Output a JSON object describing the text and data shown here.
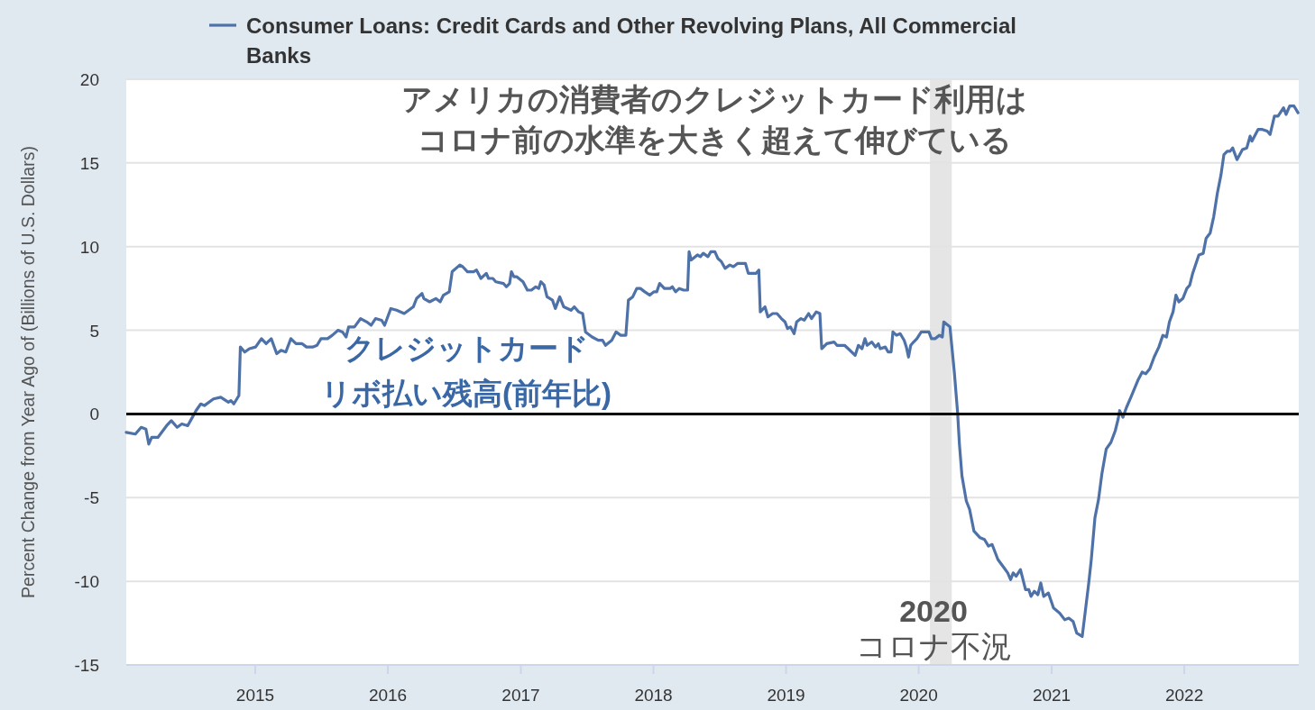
{
  "chart_data": {
    "type": "line",
    "ylabel": "Percent Change from Year Ago of (Billions of U.S. Dollars)",
    "legend": "top",
    "grid": "y",
    "line_style": "solid",
    "xlim": [
      "2014-01-11",
      "2022-11-12"
    ],
    "xticks": [
      {
        "value": "2015-01-01",
        "label": "2015"
      },
      {
        "value": "2016-01-01",
        "label": "2016"
      },
      {
        "value": "2017-01-01",
        "label": "2017"
      },
      {
        "value": "2018-01-01",
        "label": "2018"
      },
      {
        "value": "2019-01-01",
        "label": "2019"
      },
      {
        "value": "2020-01-01",
        "label": "2020"
      },
      {
        "value": "2021-01-01",
        "label": "2021"
      },
      {
        "value": "2022-01-01",
        "label": "2022"
      }
    ],
    "ylim": [
      -15,
      20
    ],
    "yticks": [
      -15,
      -10,
      -5,
      0,
      5,
      10,
      15,
      20
    ],
    "ref_lines": [
      {
        "axis": "y",
        "value": 0,
        "color": "#000000"
      }
    ],
    "bands": [
      {
        "axis": "x",
        "from": "2020-02-01",
        "to": "2020-04-01",
        "color": "#e5e5e5"
      }
    ],
    "annotations": [
      "アメリカの消費者のクレジットカード利用はコロナ前の水準を大きく超えて伸びている",
      "クレジットカードリボ払い残高(前年比)",
      "2020\nコロナ不況"
    ],
    "series": [
      {
        "name": "Consumer Loans: Credit Cards and Other Revolving Plans, All Commercial Banks",
        "color": "#4e72a8",
        "x": [
          "2014-01-11",
          "2014-02-05",
          "2014-02-21",
          "2014-03-06",
          "2014-03-14",
          "2014-03-22",
          "2014-04-08",
          "2014-05-02",
          "2014-05-15",
          "2014-05-31",
          "2014-06-13",
          "2014-06-29",
          "2014-07-12",
          "2014-07-22",
          "2014-08-04",
          "2014-08-14",
          "2014-09-08",
          "2014-09-28",
          "2014-10-19",
          "2014-10-26",
          "2014-11-03",
          "2014-11-17",
          "2014-11-21",
          "2014-12-03",
          "2014-12-16",
          "2015-01-02",
          "2015-01-18",
          "2015-01-31",
          "2015-02-14",
          "2015-03-01",
          "2015-03-13",
          "2015-03-26",
          "2015-04-09",
          "2015-04-23",
          "2015-05-10",
          "2015-05-22",
          "2015-06-08",
          "2015-06-20",
          "2015-07-01",
          "2015-07-19",
          "2015-08-01",
          "2015-08-17",
          "2015-08-29",
          "2015-09-08",
          "2015-09-15",
          "2015-10-01",
          "2015-10-18",
          "2015-11-04",
          "2015-11-16",
          "2015-11-28",
          "2015-12-15",
          "2015-12-23",
          "2016-01-09",
          "2016-01-25",
          "2016-02-15",
          "2016-03-11",
          "2016-03-20",
          "2016-04-04",
          "2016-04-09",
          "2016-04-25",
          "2016-05-12",
          "2016-05-24",
          "2016-06-02",
          "2016-06-18",
          "2016-06-26",
          "2016-07-17",
          "2016-07-25",
          "2016-08-07",
          "2016-08-24",
          "2016-09-01",
          "2016-09-13",
          "2016-09-28",
          "2016-10-04",
          "2016-10-16",
          "2016-10-24",
          "2016-11-14",
          "2016-11-22",
          "2016-12-01",
          "2016-12-06",
          "2016-12-13",
          "2016-12-21",
          "2017-01-07",
          "2017-01-19",
          "2017-01-30",
          "2017-02-11",
          "2017-02-19",
          "2017-02-25",
          "2017-03-06",
          "2017-03-14",
          "2017-03-29",
          "2017-04-06",
          "2017-04-18",
          "2017-04-29",
          "2017-05-19",
          "2017-05-28",
          "2017-06-09",
          "2017-06-20",
          "2017-06-28",
          "2017-07-16",
          "2017-08-02",
          "2017-08-14",
          "2017-08-22",
          "2017-09-08",
          "2017-09-20",
          "2017-10-03",
          "2017-10-17",
          "2017-10-24",
          "2017-11-05",
          "2017-11-16",
          "2017-11-26",
          "2017-12-08",
          "2017-12-22",
          "2018-01-02",
          "2018-01-10",
          "2018-01-18",
          "2018-01-31",
          "2018-02-16",
          "2018-02-22",
          "2018-03-03",
          "2018-03-13",
          "2018-03-25",
          "2018-04-05",
          "2018-04-09",
          "2018-04-15",
          "2018-05-02",
          "2018-05-10",
          "2018-05-18",
          "2018-05-31",
          "2018-06-08",
          "2018-06-19",
          "2018-06-27",
          "2018-07-07",
          "2018-07-17",
          "2018-07-30",
          "2018-08-09",
          "2018-08-21",
          "2018-09-11",
          "2018-09-19",
          "2018-10-10",
          "2018-10-18",
          "2018-10-22",
          "2018-11-04",
          "2018-11-12",
          "2018-11-25",
          "2018-12-07",
          "2018-12-19",
          "2018-12-29",
          "2019-01-05",
          "2019-01-13",
          "2019-01-23",
          "2019-01-30",
          "2019-02-11",
          "2019-02-20",
          "2019-03-04",
          "2019-03-12",
          "2019-03-25",
          "2019-04-04",
          "2019-04-09",
          "2019-04-23",
          "2019-05-13",
          "2019-05-21",
          "2019-06-11",
          "2019-06-21",
          "2019-07-10",
          "2019-07-19",
          "2019-07-29",
          "2019-08-06",
          "2019-08-12",
          "2019-08-25",
          "2019-09-04",
          "2019-09-12",
          "2019-09-17",
          "2019-10-01",
          "2019-10-09",
          "2019-10-17",
          "2019-10-22",
          "2019-11-01",
          "2019-11-11",
          "2019-11-22",
          "2019-11-28",
          "2019-12-04",
          "2019-12-10",
          "2019-12-18",
          "2019-12-27",
          "2020-01-08",
          "2020-01-29",
          "2020-02-05",
          "2020-02-15",
          "2020-02-27",
          "2020-03-06",
          "2020-03-10",
          "2020-03-27",
          "2020-04-08",
          "2020-04-17",
          "2020-04-22",
          "2020-04-29",
          "2020-05-11",
          "2020-05-20",
          "2020-06-01",
          "2020-06-18",
          "2020-06-30",
          "2020-07-11",
          "2020-07-21",
          "2020-08-06",
          "2020-08-23",
          "2020-09-02",
          "2020-09-10",
          "2020-09-17",
          "2020-09-25",
          "2020-10-07",
          "2020-10-21",
          "2020-10-30",
          "2020-11-05",
          "2020-11-14",
          "2020-11-24",
          "2020-12-02",
          "2020-12-10",
          "2020-12-23",
          "2021-01-06",
          "2021-01-23",
          "2021-02-06",
          "2021-02-17",
          "2021-03-01",
          "2021-03-11",
          "2021-03-26",
          "2021-04-13",
          "2021-04-20",
          "2021-04-30",
          "2021-05-10",
          "2021-05-19",
          "2021-05-31",
          "2021-06-13",
          "2021-06-25",
          "2021-07-03",
          "2021-07-07",
          "2021-07-16",
          "2021-07-26",
          "2021-08-07",
          "2021-08-26",
          "2021-09-07",
          "2021-09-17",
          "2021-09-28",
          "2021-10-10",
          "2021-10-23",
          "2021-11-03",
          "2021-11-13",
          "2021-11-21",
          "2021-12-01",
          "2021-12-09",
          "2021-12-17",
          "2021-12-28",
          "2022-01-08",
          "2022-01-16",
          "2022-01-24",
          "2022-02-10",
          "2022-02-22",
          "2022-03-02",
          "2022-03-13",
          "2022-03-23",
          "2022-04-02",
          "2022-04-12",
          "2022-04-20",
          "2022-04-29",
          "2022-05-07",
          "2022-05-14",
          "2022-05-26",
          "2022-06-10",
          "2022-06-22",
          "2022-07-01",
          "2022-07-06",
          "2022-07-23",
          "2022-08-04",
          "2022-08-17",
          "2022-08-25",
          "2022-09-06",
          "2022-09-16",
          "2022-10-01",
          "2022-10-08",
          "2022-10-18",
          "2022-10-30",
          "2022-11-10"
        ],
        "values": [
          -1.1,
          -1.2,
          -0.8,
          -0.9,
          -1.8,
          -1.4,
          -1.4,
          -0.7,
          -0.4,
          -0.8,
          -0.6,
          -0.7,
          -0.2,
          0.2,
          0.6,
          0.5,
          0.9,
          1.0,
          0.7,
          0.8,
          0.6,
          1.1,
          4.0,
          3.7,
          3.9,
          4.0,
          4.5,
          4.2,
          4.5,
          3.6,
          3.8,
          3.7,
          4.5,
          4.2,
          4.2,
          4.0,
          4.0,
          4.1,
          4.5,
          4.5,
          4.7,
          5.0,
          4.9,
          4.6,
          5.2,
          5.2,
          5.7,
          5.5,
          5.3,
          5.7,
          5.6,
          5.3,
          6.3,
          6.2,
          6.0,
          6.4,
          6.9,
          7.2,
          6.9,
          6.7,
          6.9,
          6.7,
          7.1,
          7.3,
          8.5,
          8.9,
          8.8,
          8.5,
          8.5,
          8.6,
          8.1,
          8.4,
          8.1,
          8.1,
          7.9,
          7.8,
          7.6,
          7.8,
          8.5,
          8.2,
          8.2,
          7.9,
          7.4,
          7.4,
          7.6,
          7.5,
          7.9,
          7.7,
          7.0,
          6.8,
          6.3,
          7.0,
          6.4,
          6.2,
          6.4,
          6.1,
          6.0,
          4.9,
          4.6,
          4.4,
          4.4,
          4.1,
          4.4,
          4.9,
          4.7,
          4.7,
          6.8,
          7.0,
          7.5,
          7.5,
          7.3,
          7.1,
          7.3,
          7.3,
          7.8,
          7.5,
          7.5,
          7.6,
          7.3,
          7.5,
          7.4,
          7.4,
          9.7,
          9.2,
          9.5,
          9.4,
          9.6,
          9.4,
          9.7,
          9.7,
          9.3,
          9.1,
          8.7,
          8.9,
          8.8,
          9.0,
          9.0,
          8.4,
          8.4,
          8.6,
          6.1,
          6.4,
          5.8,
          6.0,
          6.0,
          5.7,
          5.5,
          5.1,
          5.2,
          4.8,
          5.5,
          5.7,
          5.6,
          6.0,
          5.7,
          6.1,
          6.0,
          3.9,
          4.2,
          4.3,
          4.1,
          4.1,
          3.9,
          3.5,
          4.1,
          3.9,
          4.5,
          4.1,
          4.3,
          4.0,
          4.2,
          3.9,
          4.0,
          3.7,
          3.7,
          4.9,
          4.7,
          4.8,
          4.4,
          4.0,
          3.4,
          4.1,
          4.3,
          4.5,
          4.9,
          4.9,
          4.5,
          4.5,
          4.7,
          4.6,
          5.5,
          5.2,
          2.5,
          0.1,
          -1.8,
          -3.7,
          -5.2,
          -5.7,
          -7.0,
          -7.4,
          -7.5,
          -7.9,
          -7.8,
          -8.7,
          -9.2,
          -9.5,
          -9.9,
          -9.5,
          -9.7,
          -9.3,
          -10.5,
          -10.5,
          -10.9,
          -10.6,
          -10.8,
          -10.1,
          -10.9,
          -10.7,
          -11.6,
          -11.9,
          -12.3,
          -12.2,
          -12.4,
          -13.1,
          -13.3,
          -10.1,
          -8.7,
          -6.2,
          -5.1,
          -3.6,
          -2.1,
          -1.7,
          -1.0,
          -0.3,
          0.2,
          -0.2,
          0.4,
          1.0,
          2.0,
          2.5,
          2.4,
          2.7,
          3.4,
          4.0,
          4.7,
          4.6,
          5.5,
          6.1,
          7.1,
          6.7,
          6.9,
          7.5,
          7.7,
          8.4,
          9.5,
          9.6,
          10.5,
          10.8,
          11.8,
          13.2,
          14.3,
          15.5,
          15.7,
          15.7,
          15.9,
          15.2,
          15.8,
          15.9,
          16.6,
          16.3,
          17.0,
          17.0,
          16.9,
          16.7,
          17.8,
          17.8,
          18.3,
          17.9,
          18.4,
          18.4,
          18.0
        ]
      }
    ]
  }
}
